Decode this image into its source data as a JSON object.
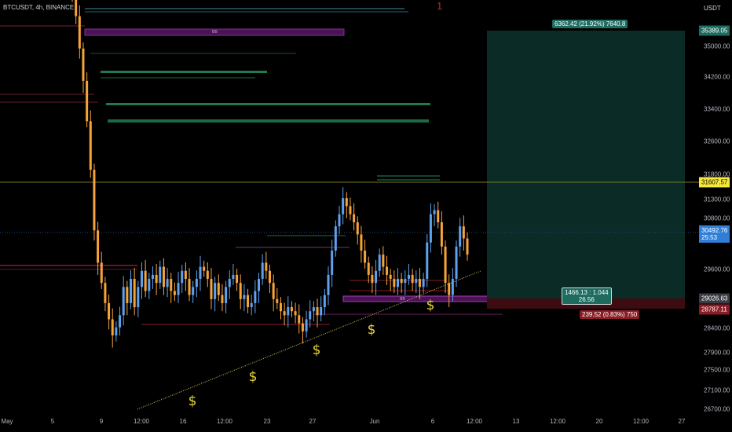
{
  "header": {
    "symbol": "BTCUSDT, 4h, BINANCE",
    "tool_number": "1",
    "currency": "USDT"
  },
  "colors": {
    "bull": "#5ea1ef",
    "bear": "#f7a33a",
    "target": "#0b2b27",
    "stop": "#3d0c10",
    "trend": "#d6c95a",
    "purple": "#a13bb0",
    "green": "#1f8a5a"
  },
  "chart_data": {
    "type": "candlestick",
    "timeframe": "4h",
    "ylim": [
      26500,
      36800
    ],
    "y_ticks": [
      "35000.00",
      "34200.00",
      "33400.00",
      "32600.00",
      "31800.00",
      "31300.00",
      "30800.00",
      "29600.00",
      "28400.00",
      "27900.00",
      "27500.00",
      "27100.00",
      "26700.00"
    ],
    "x_ticks": [
      "May",
      "5",
      "9",
      "12:00",
      "16",
      "12:00",
      "23",
      "27",
      "Jun",
      "6",
      "12:00",
      "13",
      "12:00",
      "20",
      "12:00",
      "27"
    ],
    "price_badges": [
      {
        "label": "35389.05",
        "kind": "target"
      },
      {
        "label": "31607.57",
        "kind": "hline"
      },
      {
        "label": "30492.76",
        "sub": "25:53",
        "kind": "last"
      },
      {
        "label": "29026.63",
        "kind": "entry"
      },
      {
        "label": "28787.11",
        "kind": "stop"
      }
    ],
    "close_series": [
      36900,
      36400,
      35600,
      34800,
      33800,
      32600,
      31100,
      30300,
      29800,
      29300,
      28900,
      28500,
      28700,
      29000,
      29700,
      29300,
      29900,
      29200,
      29700,
      30100,
      29600,
      29900,
      30000,
      29800,
      30200,
      29700,
      29900,
      29600,
      29500,
      29800,
      30100,
      29900,
      29500,
      29700,
      29900,
      30200,
      30100,
      29900,
      29400,
      29800,
      29500,
      29300,
      29700,
      29900,
      30000,
      29800,
      29400,
      29500,
      29200,
      29300,
      29600,
      29900,
      30300,
      30100,
      29800,
      29400,
      29300,
      29100,
      29000,
      29200,
      29100,
      29000,
      28800,
      28600,
      28900,
      29100,
      29200,
      29000,
      29200,
      29500,
      30000,
      30600,
      31200,
      31500,
      31900,
      31700,
      31500,
      31300,
      31000,
      30600,
      30300,
      30000,
      29800,
      30100,
      30500,
      30200,
      30000,
      29900,
      29700,
      29900,
      29800,
      29900,
      30000,
      29800,
      29900,
      29700,
      29900,
      30800,
      31500,
      31600,
      31300,
      30700,
      29800,
      29500,
      29900,
      30700,
      31200,
      30900,
      30500
    ],
    "position": {
      "target_label": "6362.42 (21.92%) 7640.8",
      "center_label": "1466.13 : 1.044",
      "center_sub": "26.56",
      "stop_label": "239.52 (0.83%) 750"
    },
    "annotations": [
      "$",
      "$",
      "$",
      "$",
      "$",
      "$"
    ],
    "block_labels": [
      "BB",
      "BB"
    ]
  }
}
